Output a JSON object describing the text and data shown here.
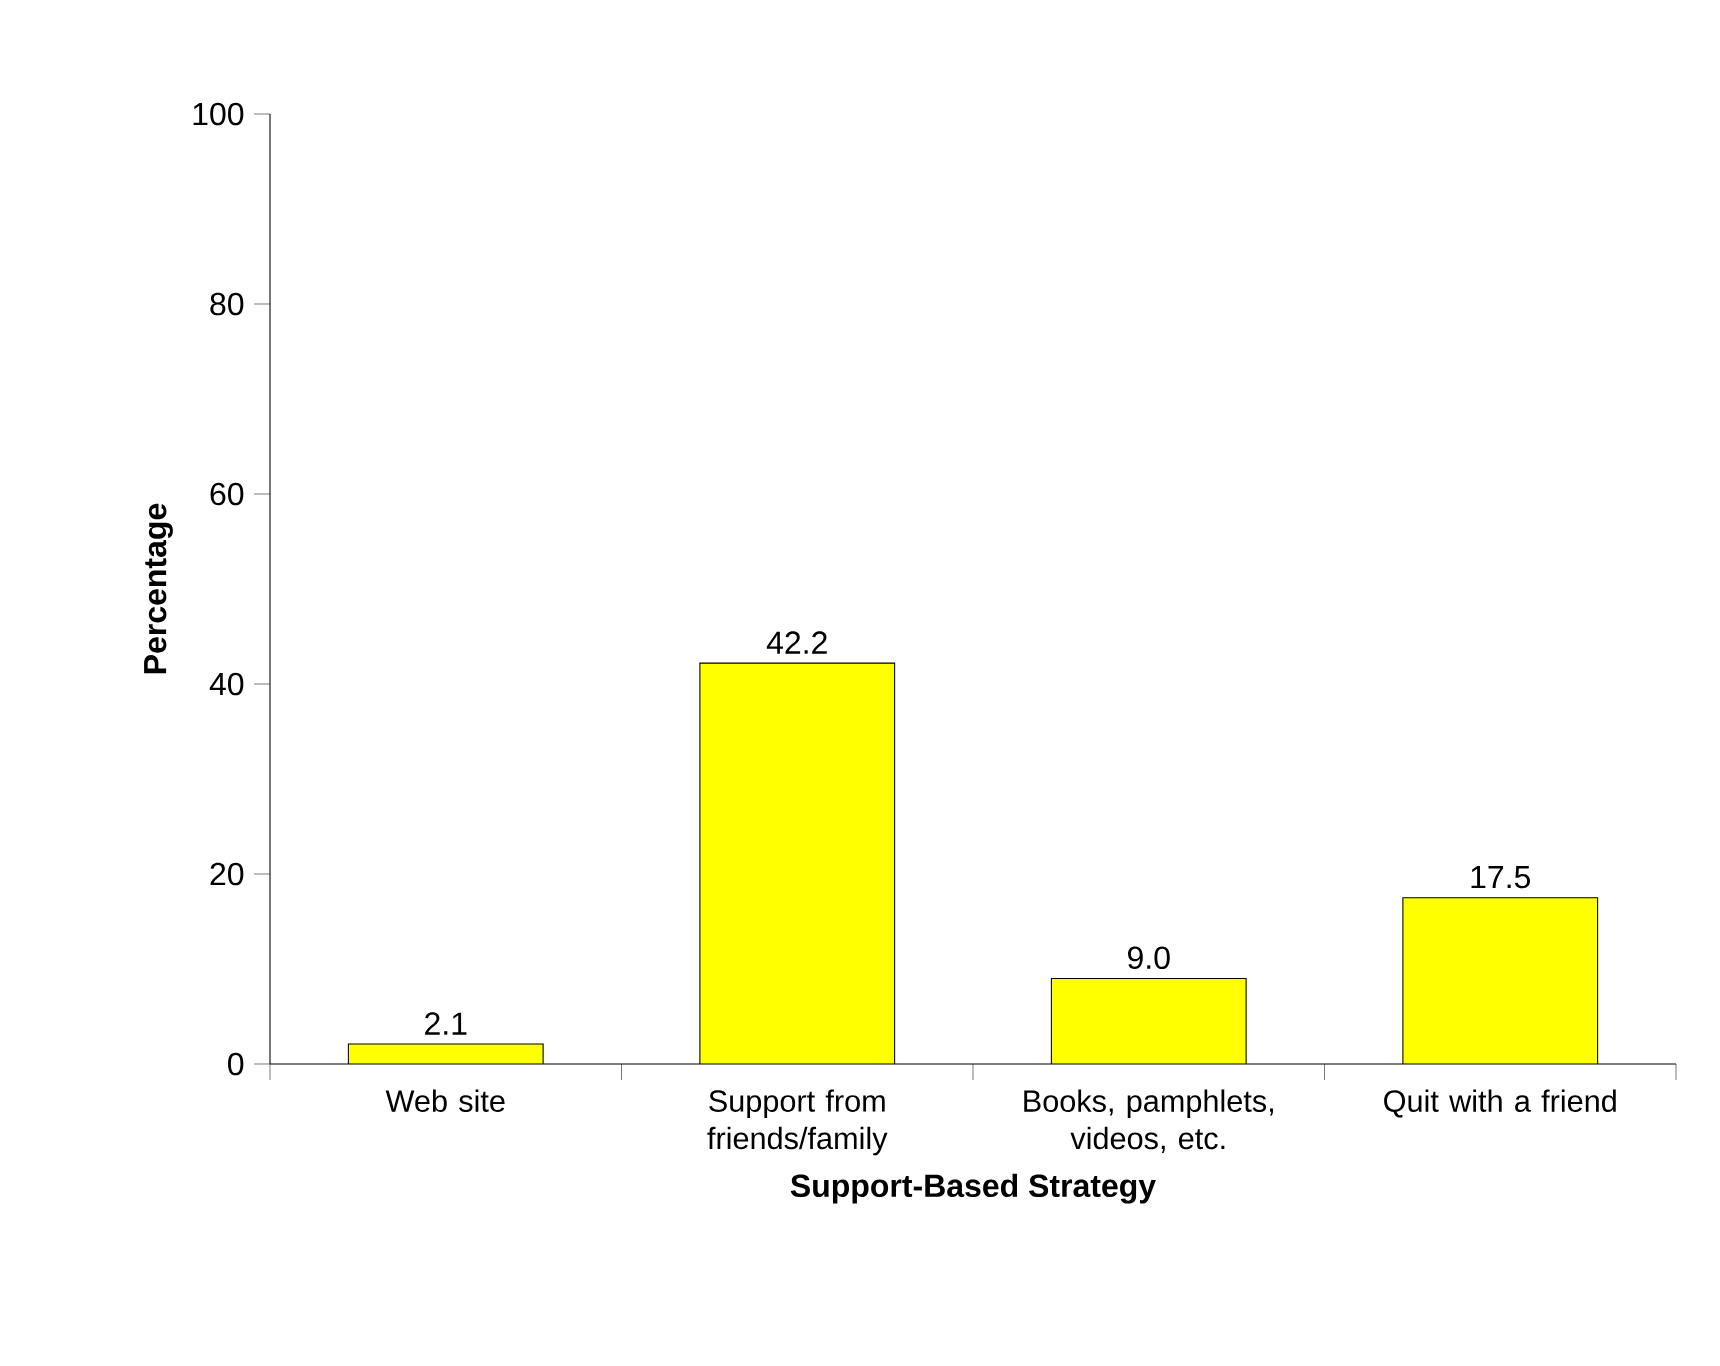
{
  "chart_data": {
    "type": "bar",
    "xlabel": "Support-Based Strategy",
    "ylabel": "Percentage",
    "categories": [
      "Web site",
      "Support from friends/family",
      "Books, pamphlets, videos, etc.",
      "Quit with a friend"
    ],
    "values": [
      2.1,
      42.2,
      9.0,
      17.5
    ],
    "color": "#ffff00",
    "ylim": [
      0,
      100
    ],
    "yticks": [
      0,
      20,
      40,
      60,
      80,
      100
    ],
    "grid": false,
    "value_labels": [
      "2.1",
      "42.2",
      "9.0",
      "17.5"
    ]
  }
}
